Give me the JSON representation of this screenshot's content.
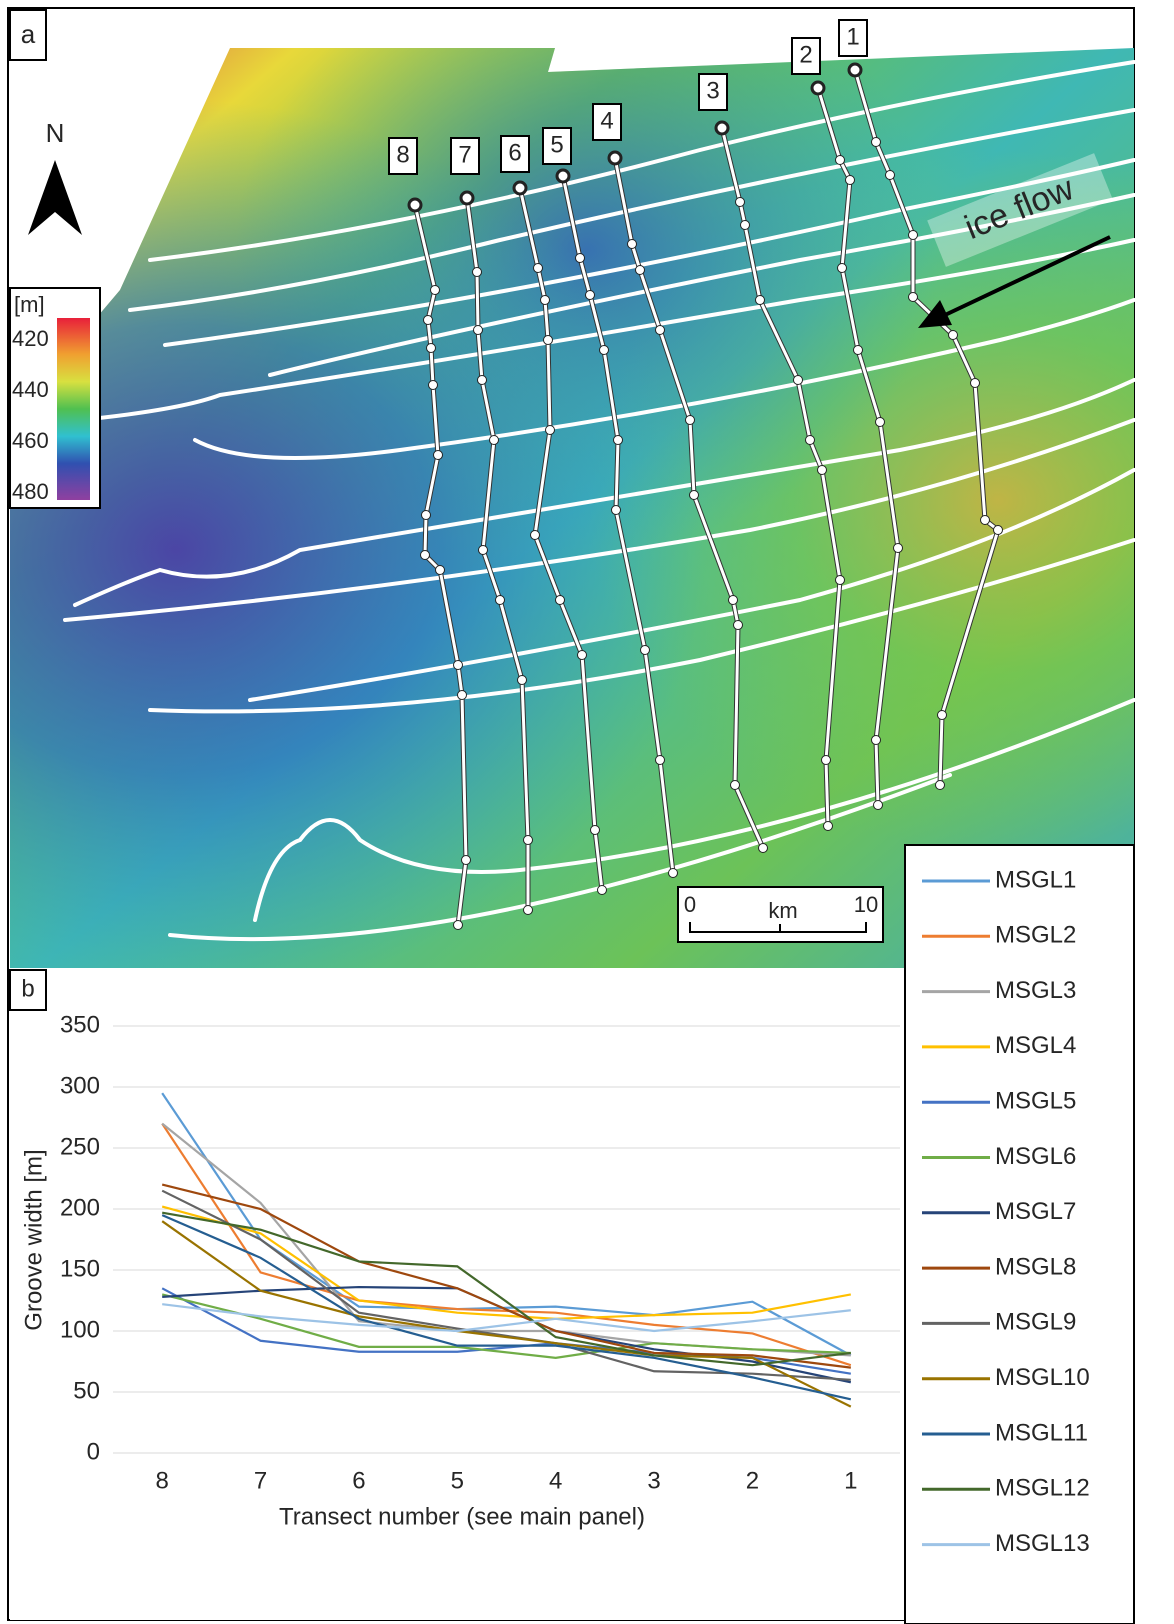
{
  "panel_a": {
    "label": "a",
    "north": "N",
    "colorbar": {
      "unit": "[m]",
      "ticks": [
        420,
        440,
        460,
        480
      ]
    },
    "transects": [
      "1",
      "2",
      "3",
      "4",
      "5",
      "6",
      "7",
      "8"
    ],
    "annotation": "ice flow",
    "scale_bar": {
      "start": "0",
      "unit": "km",
      "end": "10"
    }
  },
  "chart_data": {
    "type": "line",
    "panel_label": "b",
    "x_label": "Transect number (see main panel)",
    "y_label": "Groove width [m]",
    "categories": [
      "8",
      "7",
      "6",
      "5",
      "4",
      "3",
      "2",
      "1"
    ],
    "ylim": [
      0,
      350
    ],
    "yticks": [
      0,
      50,
      100,
      150,
      200,
      250,
      300,
      350
    ],
    "grid": true,
    "legend": "right",
    "series": [
      {
        "name": "MSGL1",
        "color": "#5b9bd5",
        "values": [
          295,
          175,
          120,
          118,
          120,
          113,
          124,
          80
        ]
      },
      {
        "name": "MSGL2",
        "color": "#ed7d31",
        "values": [
          270,
          148,
          125,
          118,
          115,
          105,
          98,
          72
        ]
      },
      {
        "name": "MSGL3",
        "color": "#a5a5a5",
        "values": [
          270,
          205,
          108,
          100,
          100,
          90,
          85,
          80
        ]
      },
      {
        "name": "MSGL4",
        "color": "#ffc000",
        "values": [
          202,
          180,
          125,
          115,
          110,
          113,
          115,
          130
        ]
      },
      {
        "name": "MSGL5",
        "color": "#4472c4",
        "values": [
          135,
          92,
          83,
          83,
          90,
          82,
          78,
          65
        ]
      },
      {
        "name": "MSGL6",
        "color": "#70ad47",
        "values": [
          130,
          110,
          87,
          87,
          78,
          90,
          85,
          82
        ]
      },
      {
        "name": "MSGL7",
        "color": "#264478",
        "values": [
          128,
          133,
          136,
          135,
          100,
          85,
          75,
          58
        ]
      },
      {
        "name": "MSGL8",
        "color": "#9e480e",
        "values": [
          220,
          200,
          157,
          135,
          100,
          82,
          80,
          70
        ]
      },
      {
        "name": "MSGL9",
        "color": "#636363",
        "values": [
          215,
          175,
          115,
          102,
          90,
          67,
          65,
          60
        ]
      },
      {
        "name": "MSGL10",
        "color": "#997300",
        "values": [
          190,
          133,
          112,
          100,
          90,
          80,
          78,
          38
        ]
      },
      {
        "name": "MSGL11",
        "color": "#255e91",
        "values": [
          195,
          160,
          110,
          88,
          88,
          78,
          62,
          44
        ]
      },
      {
        "name": "MSGL12",
        "color": "#43682b",
        "values": [
          197,
          183,
          157,
          153,
          95,
          80,
          72,
          82
        ]
      },
      {
        "name": "MSGL13",
        "color": "#9dc3e6",
        "values": [
          122,
          112,
          105,
          100,
          110,
          100,
          108,
          117
        ]
      }
    ]
  }
}
